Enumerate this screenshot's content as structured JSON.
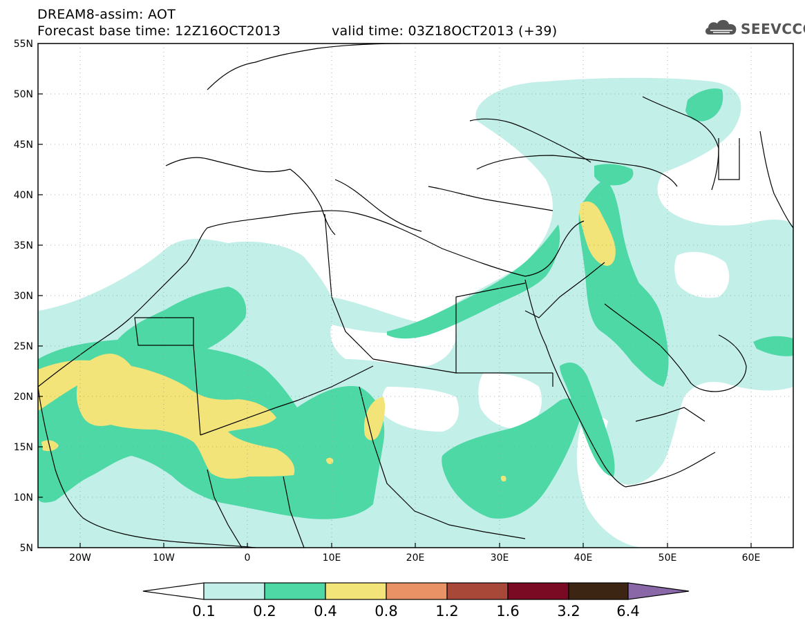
{
  "header": {
    "title": "DREAM8-assim: AOT",
    "base_time": "Forecast base time: 12Z16OCT2013",
    "valid_time": "valid time: 03Z18OCT2013 (+39)"
  },
  "logo": {
    "text": "SEEVCCC",
    "icon": "cloud-icon"
  },
  "map": {
    "lon_range": [
      -25,
      65
    ],
    "lat_range": [
      5,
      55
    ],
    "lat_labels": [
      "5N",
      "10N",
      "15N",
      "20N",
      "25N",
      "30N",
      "35N",
      "40N",
      "45N",
      "50N",
      "55N"
    ],
    "lon_labels": [
      "20W",
      "10W",
      "0",
      "10E",
      "20E",
      "30E",
      "40E",
      "50E",
      "60E"
    ],
    "grid": true
  },
  "colorbar": {
    "labels": [
      "0.1",
      "0.2",
      "0.4",
      "0.8",
      "1.2",
      "1.6",
      "3.2",
      "6.4"
    ],
    "colors": [
      "#ffffff",
      "#c3efe9",
      "#4dd8a6",
      "#f3e47a",
      "#e89266",
      "#a84838",
      "#7a0a24",
      "#3d2514",
      "#8a68a8"
    ]
  },
  "colors": {
    "level1": "#c3efe9",
    "level2": "#4dd8a6",
    "level3": "#f3e47a"
  }
}
